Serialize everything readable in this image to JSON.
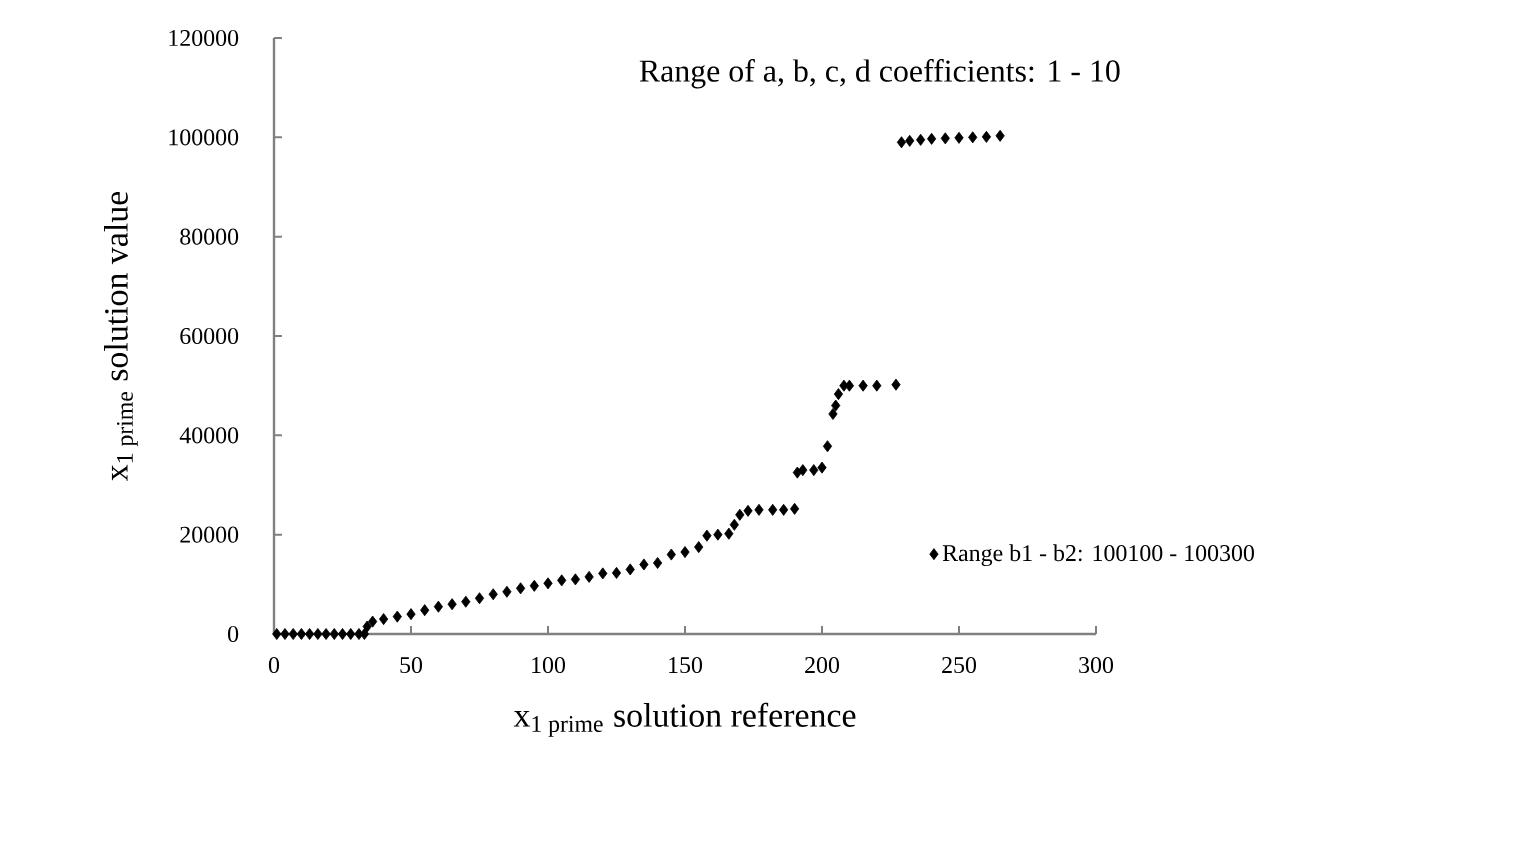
{
  "chart_data": {
    "type": "scatter",
    "title": "Range of  a, b, c, d coefficients: 1 - 10",
    "xlabel": "x$_{1 prime}$ solution reference",
    "ylabel": "x$_{1 prime}$ solution value",
    "xlim": [
      0,
      300
    ],
    "xticks": [
      0,
      50,
      100,
      150,
      200,
      250,
      300
    ],
    "ylim": [
      0,
      120000
    ],
    "yticks": [
      0,
      20000,
      40000,
      60000,
      80000,
      100000,
      120000
    ],
    "marker": "diamond",
    "legend": "right",
    "grid": false,
    "series": [
      {
        "name": "Range b1 - b2: 100100 - 100300",
        "color": "#000000",
        "x": [
          1,
          4,
          7,
          10,
          13,
          16,
          19,
          22,
          25,
          28,
          31,
          33,
          34,
          36,
          40,
          45,
          50,
          55,
          60,
          65,
          70,
          75,
          80,
          85,
          90,
          95,
          100,
          105,
          110,
          115,
          120,
          125,
          130,
          135,
          140,
          145,
          150,
          155,
          158,
          162,
          166,
          168,
          170,
          173,
          177,
          182,
          186,
          190,
          191,
          193,
          197,
          200,
          202,
          204,
          205,
          206,
          208,
          210,
          215,
          220,
          227,
          229,
          232,
          236,
          240,
          245,
          250,
          255,
          260,
          265
        ],
        "values": [
          0,
          0,
          0,
          0,
          0,
          0,
          0,
          0,
          0,
          0,
          0,
          0,
          1500,
          2500,
          3000,
          3500,
          4000,
          4800,
          5500,
          6000,
          6500,
          7200,
          8000,
          8500,
          9200,
          9700,
          10200,
          10800,
          11000,
          11500,
          12200,
          12300,
          13000,
          14000,
          14300,
          16000,
          16500,
          17500,
          19800,
          20000,
          20200,
          22000,
          24000,
          24800,
          25000,
          25000,
          25000,
          25200,
          32500,
          33000,
          33000,
          33500,
          37800,
          44300,
          46000,
          48300,
          50000,
          50000,
          50000,
          50000,
          50200,
          99000,
          99300,
          99500,
          99700,
          99800,
          99900,
          100000,
          100100,
          100300
        ]
      }
    ]
  }
}
